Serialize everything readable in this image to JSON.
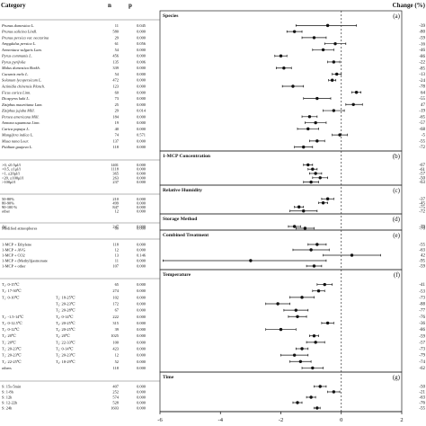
{
  "chart_data": {
    "type": "scatter",
    "subtype": "forest-plot",
    "columns": {
      "category": "Category",
      "n": "n",
      "p": "p",
      "change": "Change (%)"
    },
    "xlim": [
      -6,
      2
    ],
    "xticks": [
      -6,
      -4,
      -2,
      0,
      2
    ],
    "reference_line": 0,
    "panels": [
      {
        "letter": "(a)",
        "title": "Species",
        "rows": [
          {
            "label": "Prunus domestica  L.",
            "n": "11",
            "p": "0.045",
            "est": -0.45,
            "lo": -1.5,
            "hi": 0.5,
            "change": "-39"
          },
          {
            "label": "Prunus salicina  Lindl.",
            "n": "580",
            "p": "0.000",
            "est": -1.55,
            "lo": -1.8,
            "hi": -1.3,
            "change": "-80"
          },
          {
            "label": "Prunus persica  var. nectarina",
            "n": "29",
            "p": "0.000",
            "est": -0.9,
            "lo": -1.3,
            "hi": -0.5,
            "change": "-59"
          },
          {
            "label": "Amygdalus persica  L.",
            "n": "61",
            "p": "0.056",
            "est": -0.2,
            "lo": -0.55,
            "hi": 0.15,
            "change": "-16"
          },
          {
            "label": "Armeniaca vulgaris  Lam.",
            "n": "54",
            "p": "0.000",
            "est": -0.6,
            "lo": -0.95,
            "hi": -0.25,
            "change": "-46"
          },
          {
            "label": "Pyrus communis  L.",
            "n": "456",
            "p": "0.000",
            "est": -2.0,
            "lo": -2.2,
            "hi": -1.8,
            "change": "-86"
          },
          {
            "label": "Pyrus pyrifolia",
            "n": "135",
            "p": "0.006",
            "est": -0.25,
            "lo": -0.45,
            "hi": -0.05,
            "change": "-22"
          },
          {
            "label": "Malus domestica  Borkh.",
            "n": "339",
            "p": "0.000",
            "est": -1.9,
            "lo": -2.15,
            "hi": -1.65,
            "change": "-85"
          },
          {
            "label": "Cucumis melo  L.",
            "n": "54",
            "p": "0.000",
            "est": -0.15,
            "lo": -0.3,
            "hi": 0.0,
            "change": "-13"
          },
          {
            "label": "Solanum lycopersicum  L.",
            "n": "472",
            "p": "0.000",
            "est": -0.3,
            "lo": -0.42,
            "hi": -0.18,
            "change": "-24"
          },
          {
            "label": "Actinidia chinensis  Planch.",
            "n": "123",
            "p": "0.000",
            "est": -1.6,
            "lo": -1.95,
            "hi": -1.25,
            "change": "-78"
          },
          {
            "label": "Ficus carica  Linn.",
            "n": "60",
            "p": "0.000",
            "est": 0.5,
            "lo": 0.35,
            "hi": 0.65,
            "change": "64"
          },
          {
            "label": "Diospyros kaki  L.",
            "n": "73",
            "p": "0.000",
            "est": -0.8,
            "lo": -1.25,
            "hi": -0.35,
            "change": "-55"
          },
          {
            "label": "Ziziphus mauritiana  Lam.",
            "n": "25",
            "p": "0.000",
            "est": 0.4,
            "lo": 0.15,
            "hi": 0.7,
            "change": "47"
          },
          {
            "label": "Ziziphus jujuba  Mill.",
            "n": "29",
            "p": "0.014",
            "est": -0.25,
            "lo": -0.6,
            "hi": 0.1,
            "change": "-19"
          },
          {
            "label": "Persea americana  Mill.",
            "n": "184",
            "p": "0.000",
            "est": -1.05,
            "lo": -1.3,
            "hi": -0.8,
            "change": "-65"
          },
          {
            "label": "Annona squamosa  Linn.",
            "n": "19",
            "p": "0.000",
            "est": -0.85,
            "lo": -1.2,
            "hi": -0.5,
            "change": "-57"
          },
          {
            "label": "Carica papaya  L.",
            "n": "40",
            "p": "0.000",
            "est": -1.1,
            "lo": -1.45,
            "hi": -0.75,
            "change": "-68"
          },
          {
            "label": "Mangifera indica  L.",
            "n": "74",
            "p": "0.571",
            "est": -0.05,
            "lo": -0.3,
            "hi": 0.2,
            "change": "-5"
          },
          {
            "label": "Musa nana  Lour.",
            "n": "137",
            "p": "0.000",
            "est": -0.8,
            "lo": -1.05,
            "hi": -0.55,
            "change": "-55"
          },
          {
            "label": "Psidium guajava  L.",
            "n": "118",
            "p": "0.000",
            "est": -1.25,
            "lo": -1.55,
            "hi": -0.95,
            "change": "-72"
          }
        ]
      },
      {
        "letter": "(b)",
        "title": "1-MCP Concentration",
        "rows": [
          {
            "label": ">0, ≤0.5μl/l",
            "n": "1401",
            "p": "0.000",
            "est": -1.1,
            "lo": -1.25,
            "hi": -0.95,
            "change": "-67"
          },
          {
            "label": ">0.5, ≤1μl/l",
            "n": "1118",
            "p": "0.000",
            "est": -0.95,
            "lo": -1.1,
            "hi": -0.8,
            "change": "-61"
          },
          {
            "label": ">1, ≤20μl/l",
            "n": "365",
            "p": "0.000",
            "est": -0.85,
            "lo": -1.05,
            "hi": -0.65,
            "change": "-57"
          },
          {
            "label": ">20, ≤100μl/l",
            "n": "263",
            "p": "0.000",
            "est": -0.7,
            "lo": -0.95,
            "hi": -0.45,
            "change": "-50"
          },
          {
            "label": ">100μl/l",
            "n": "237",
            "p": "0.000",
            "est": -1.0,
            "lo": -1.25,
            "hi": -0.75,
            "change": "-63"
          }
        ]
      },
      {
        "letter": "(c)",
        "title": "Relative Humidity",
        "rows": [
          {
            "label": "50-80%",
            "n": "210",
            "p": "0.000",
            "est": -0.45,
            "lo": -0.65,
            "hi": -0.25,
            "change": "-37"
          },
          {
            "label": "80-90%",
            "n": "499",
            "p": "0.000",
            "est": -0.6,
            "lo": -0.75,
            "hi": -0.45,
            "change": "-45"
          },
          {
            "label": "90-100 %",
            "n": "847",
            "p": "0.000",
            "est": -1.4,
            "lo": -1.55,
            "hi": -1.25,
            "change": "-75"
          },
          {
            "label": "other",
            "n": "12",
            "p": "0.000",
            "est": -1.25,
            "lo": -1.7,
            "hi": -0.8,
            "change": "-72"
          }
        ]
      },
      {
        "letter": "(d)",
        "title": "Storage Method",
        "rows": [
          {
            "label": "Air",
            "n": "247",
            "p": "0.000",
            "est": -1.55,
            "lo": -1.75,
            "hi": -1.35,
            "change": "-79"
          },
          {
            "label": "Modified atmospheres",
            "n": "80",
            "p": "0.000",
            "est": -1.2,
            "lo": -1.5,
            "hi": -0.9,
            "change": "-70"
          }
        ]
      },
      {
        "letter": "(e)",
        "title": "Combined Treatment",
        "rows": [
          {
            "label": "1-MCP + Ethylene",
            "n": "118",
            "p": "0.000",
            "est": -0.8,
            "lo": -1.1,
            "hi": -0.5,
            "change": "-55"
          },
          {
            "label": "1-MCP + AVG",
            "n": "12",
            "p": "0.000",
            "est": -1.0,
            "lo": -1.6,
            "hi": -0.4,
            "change": "-63"
          },
          {
            "label": "1-MCP + CO2",
            "n": "13",
            "p": "0.146",
            "est": 0.35,
            "lo": -0.6,
            "hi": 1.3,
            "change": "42"
          },
          {
            "label": "1-MCP + (Methyl)jasmonate",
            "n": "11",
            "p": "0.000",
            "est": -3.0,
            "lo": -5.9,
            "hi": -0.5,
            "change": "-95"
          },
          {
            "label": "1-MCP + other",
            "n": "107",
            "p": "0.000",
            "est": -0.9,
            "lo": -1.15,
            "hi": -0.65,
            "change": "-59"
          }
        ]
      },
      {
        "letter": "(f)",
        "title": "Temperature",
        "rows": [
          {
            "label": "T₁: 0-15℃",
            "label2": "",
            "n": "65",
            "p": "0.000",
            "est": -0.55,
            "lo": -0.8,
            "hi": -0.3,
            "change": "-41"
          },
          {
            "label": "T₁: 17-30℃",
            "label2": "",
            "n": "274",
            "p": "0.000",
            "est": -0.75,
            "lo": -0.95,
            "hi": -0.55,
            "change": "-53"
          },
          {
            "label": "T₁: 0-10℃",
            "label2": "T₂: 18-25℃",
            "n": "102",
            "p": "0.000",
            "est": -1.3,
            "lo": -1.7,
            "hi": -0.9,
            "change": "-73"
          },
          {
            "label": "",
            "label2": "T₂: 20-23℃",
            "n": "172",
            "p": "0.000",
            "est": -2.1,
            "lo": -2.5,
            "hi": -1.7,
            "change": "-88"
          },
          {
            "label": "",
            "label2": "T₂: 20-28℃",
            "n": "67",
            "p": "0.000",
            "est": -1.5,
            "lo": -1.9,
            "hi": -1.1,
            "change": "-77"
          },
          {
            "label": "T₁: -1.5-14℃",
            "label2": "T₂: 0-14℃",
            "n": "222",
            "p": "0.000",
            "est": -1.45,
            "lo": -1.75,
            "hi": -1.15,
            "change": "-76"
          },
          {
            "label": "T₁: 0-12.5℃",
            "label2": "T₂: 20-25℃",
            "n": "315",
            "p": "0.000",
            "est": -0.45,
            "lo": -0.65,
            "hi": -0.25,
            "change": "-36"
          },
          {
            "label": "T₁: 0-12℃",
            "label2": "T₂: 20-25℃",
            "n": "39",
            "p": "0.000",
            "est": -2.0,
            "lo": -2.5,
            "hi": -1.5,
            "change": "-86"
          },
          {
            "label": "T₁: 20℃",
            "label2": "T₂: 20℃",
            "n": "1025",
            "p": "0.000",
            "est": -0.9,
            "lo": -1.05,
            "hi": -0.75,
            "change": "-59"
          },
          {
            "label": "T₁: 20℃",
            "label2": "T₂: 22-33℃",
            "n": "100",
            "p": "0.000",
            "est": -0.85,
            "lo": -1.15,
            "hi": -0.55,
            "change": "-57"
          },
          {
            "label": "T₁: 20-23℃",
            "label2": "T₂: 0-14℃",
            "n": "423",
            "p": "0.000",
            "est": -1.3,
            "lo": -1.5,
            "hi": -1.1,
            "change": "-73"
          },
          {
            "label": "T₁: 20-23℃",
            "label2": "T₂: 20-23℃",
            "n": "12",
            "p": "0.000",
            "est": -1.55,
            "lo": -2.0,
            "hi": -1.1,
            "change": "-79"
          },
          {
            "label": "T₁: 22-25℃",
            "label2": "T₂: 18-29℃",
            "n": "52",
            "p": "0.000",
            "est": -1.35,
            "lo": -1.7,
            "hi": -1.0,
            "change": "-74"
          },
          {
            "label": "others",
            "label2": "",
            "n": "118",
            "p": "0.000",
            "est": -0.95,
            "lo": -1.3,
            "hi": -0.6,
            "change": "-62"
          }
        ]
      },
      {
        "letter": "(g)",
        "title": "Time",
        "rows": [
          {
            "label": "S: 15s-5min",
            "n": "407",
            "p": "0.000",
            "est": -0.7,
            "lo": -0.9,
            "hi": -0.5,
            "change": "-50"
          },
          {
            "label": "S: 1-8h",
            "n": "252",
            "p": "0.000",
            "est": -0.25,
            "lo": -0.45,
            "hi": -0.05,
            "change": "-21"
          },
          {
            "label": "S: 12h",
            "n": "574",
            "p": "0.000",
            "est": -1.0,
            "lo": -1.15,
            "hi": -0.85,
            "change": "-63"
          },
          {
            "label": "S: 12-22h",
            "n": "528",
            "p": "0.000",
            "est": -1.45,
            "lo": -1.6,
            "hi": -1.3,
            "change": "-76"
          },
          {
            "label": "S: 24h",
            "n": "1603",
            "p": "0.000",
            "est": -0.8,
            "lo": -0.9,
            "hi": -0.7,
            "change": "-55"
          }
        ]
      }
    ]
  }
}
